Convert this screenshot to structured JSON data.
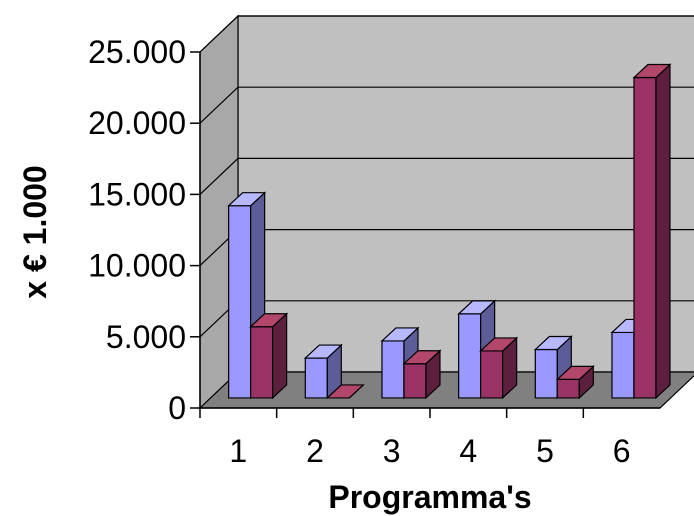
{
  "chart_data": {
    "type": "bar",
    "title": "",
    "xlabel": "Programma's",
    "ylabel": "x € 1.000",
    "categories": [
      "1",
      "2",
      "3",
      "4",
      "5",
      "6"
    ],
    "ylim": [
      0,
      25000
    ],
    "y_ticks": [
      0,
      5000,
      10000,
      15000,
      20000,
      25000
    ],
    "y_tick_labels": [
      "0",
      "5.000",
      "10.000",
      "15.000",
      "20.000",
      "25.000"
    ],
    "series": [
      {
        "values": [
          13500,
          2800,
          4000,
          5900,
          3400,
          4600
        ]
      },
      {
        "values": [
          5000,
          0,
          2400,
          3300,
          1300,
          22500
        ]
      }
    ],
    "grid": true,
    "legend": "none",
    "three_d": true,
    "colors": {
      "wall": "#c0c0c0",
      "floor": "#808080",
      "gridline": "#000000",
      "series1_front": "#9999ff",
      "series1_side": "#5c5c99",
      "series1_top": "#b8b8ff",
      "series2_front": "#993366",
      "series2_side": "#5c1f3d",
      "series2_top": "#b3476b"
    }
  }
}
